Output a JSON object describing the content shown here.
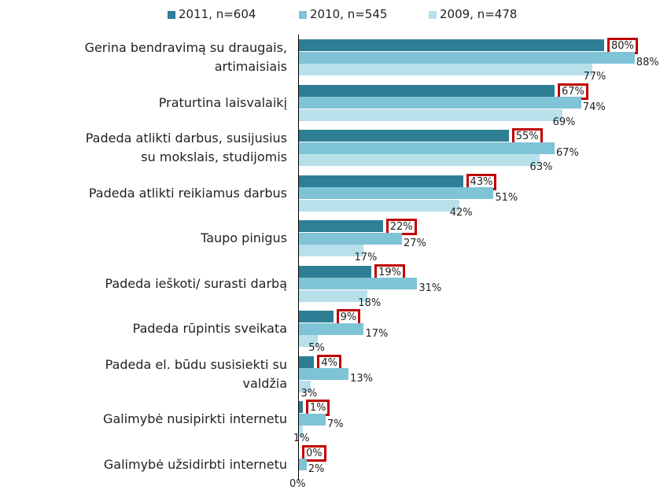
{
  "chart_data": {
    "type": "hbar",
    "categories": [
      "Gerina bendravimą su draugais,\nartimaisiais",
      "Praturtina laisvalaikį",
      "Padeda atlikti darbus, susijusius\nsu mokslais, studijomis",
      "Padeda atlikti reikiamus darbus",
      "Taupo pinigus",
      "Padeda ieškoti/ surasti darbą",
      "Padeda rūpintis sveikata",
      "Padeda el. būdu susisiekti su\nvaldžia",
      "Galimybė nusipirkti internetu",
      "Galimybė užsidirbti internetu"
    ],
    "series": [
      {
        "name": "2011, n=604",
        "color": "#2e7f96",
        "values": [
          80,
          67,
          55,
          43,
          22,
          19,
          9,
          4,
          1,
          0
        ],
        "value_labels": [
          "80%",
          "67%",
          "55%",
          "43%",
          "22%",
          "19%",
          "9%",
          "4%",
          "1%",
          "0%"
        ]
      },
      {
        "name": "2010, n=545",
        "color": "#7fc3d6",
        "values": [
          88,
          74,
          67,
          51,
          27,
          31,
          17,
          13,
          7,
          2
        ],
        "value_labels": [
          "88%",
          "74%",
          "67%",
          "51%",
          "27%",
          "31%",
          "17%",
          "13%",
          "7%",
          "2%"
        ]
      },
      {
        "name": "2009, n=478",
        "color": "#b8e0ea",
        "values": [
          77,
          69,
          63,
          42,
          17,
          18,
          5,
          3,
          1,
          0
        ],
        "value_labels": [
          "77%",
          "69%",
          "63%",
          "42%",
          "17%",
          "18%",
          "5%",
          "3%",
          "1%",
          "0%"
        ]
      }
    ],
    "xlim": [
      0,
      100
    ]
  }
}
